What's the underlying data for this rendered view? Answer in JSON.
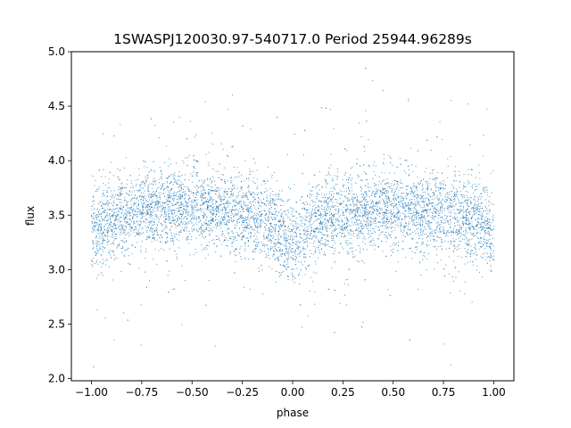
{
  "chart_data": {
    "type": "scatter",
    "title": "1SWASPJ120030.97-540717.0 Period 25944.96289s",
    "xlabel": "phase",
    "ylabel": "flux",
    "xlim": [
      -1.1,
      1.1
    ],
    "ylim": [
      1.98,
      5.0
    ],
    "x_ticks": [
      -1.0,
      -0.75,
      -0.5,
      -0.25,
      0.0,
      0.25,
      0.5,
      0.75,
      1.0
    ],
    "x_tick_labels": [
      "−1.00",
      "−0.75",
      "−0.50",
      "−0.25",
      "0.00",
      "0.25",
      "0.50",
      "0.75",
      "1.00"
    ],
    "y_ticks": [
      2.0,
      2.5,
      3.0,
      3.5,
      4.0,
      4.5,
      5.0
    ],
    "y_tick_labels": [
      "2.0",
      "2.5",
      "3.0",
      "3.5",
      "4.0",
      "4.5",
      "5.0"
    ],
    "grid": false,
    "marker_color": "#1f77b4",
    "series": [
      {
        "phase_range": [
          -1.0,
          1.0
        ],
        "profile_phase": [
          -1.0,
          -0.9,
          -0.8,
          -0.7,
          -0.6,
          -0.5,
          -0.4,
          -0.3,
          -0.2,
          -0.1,
          -0.05,
          0.0,
          0.05,
          0.1,
          0.2,
          0.3,
          0.4,
          0.5,
          0.6,
          0.7,
          0.8,
          0.9,
          1.0
        ],
        "profile_flux": [
          3.35,
          3.45,
          3.52,
          3.56,
          3.56,
          3.55,
          3.55,
          3.53,
          3.5,
          3.42,
          3.33,
          3.25,
          3.33,
          3.42,
          3.5,
          3.53,
          3.55,
          3.55,
          3.55,
          3.53,
          3.5,
          3.45,
          3.35
        ],
        "flux_scatter_sd": 0.18,
        "outlier_flux_range": [
          2.1,
          4.9
        ]
      }
    ]
  }
}
